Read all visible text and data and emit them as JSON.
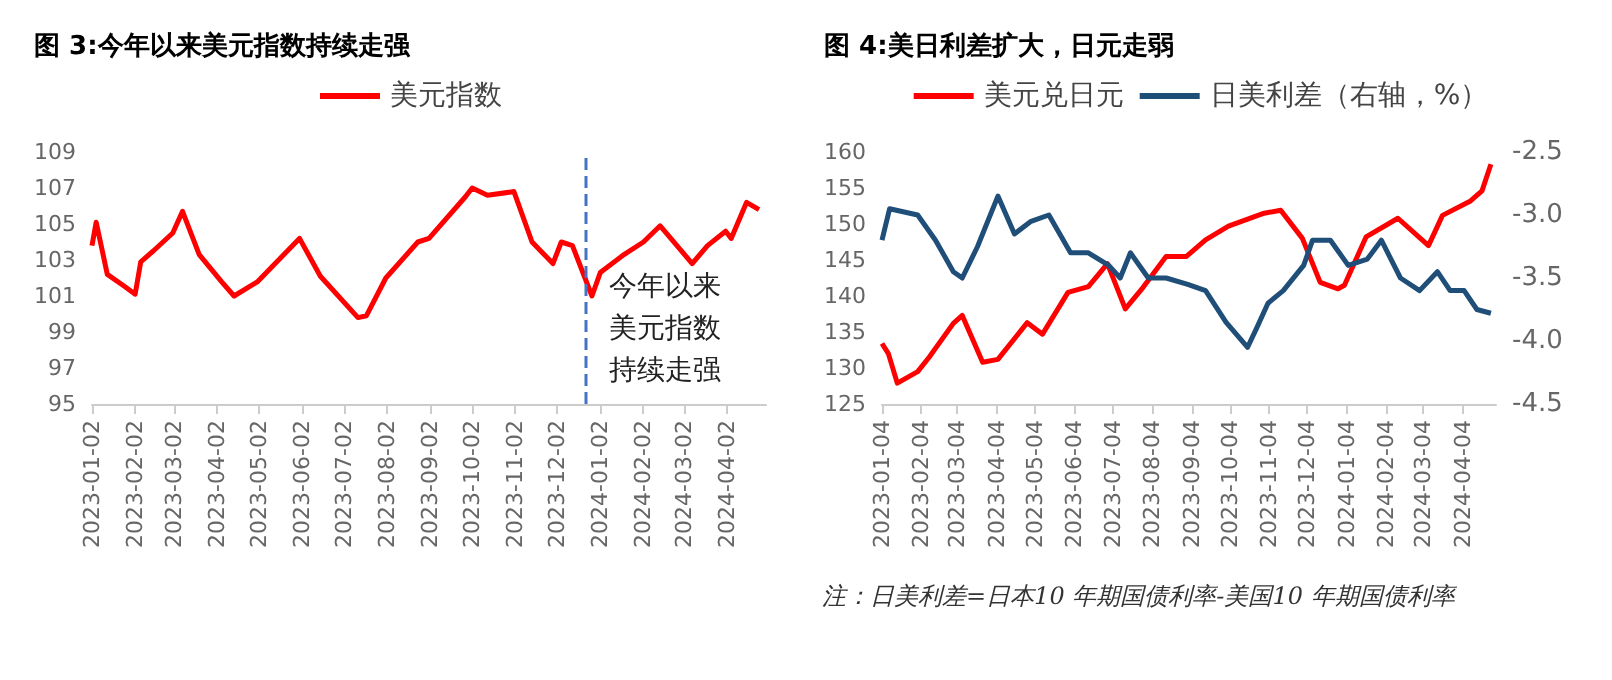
{
  "chart_data": [
    {
      "type": "line",
      "title": "图 3:今年以来美元指数持续走强",
      "x": [
        "2023-01-02",
        "2023-01-05",
        "2023-01-13",
        "2023-01-26",
        "2023-02-02",
        "2023-02-06",
        "2023-02-15",
        "2023-03-01",
        "2023-03-08",
        "2023-03-20",
        "2023-04-05",
        "2023-04-14",
        "2023-05-01",
        "2023-05-31",
        "2023-06-15",
        "2023-07-12",
        "2023-07-18",
        "2023-08-01",
        "2023-08-24",
        "2023-09-01",
        "2023-09-27",
        "2023-10-02",
        "2023-10-13",
        "2023-11-01",
        "2023-11-14",
        "2023-11-29",
        "2023-12-05",
        "2023-12-13",
        "2023-12-27",
        "2024-01-02",
        "2024-01-19",
        "2024-02-02",
        "2024-02-14",
        "2024-03-08",
        "2024-03-19",
        "2024-04-01",
        "2024-04-05",
        "2024-04-16",
        "2024-04-25"
      ],
      "series": [
        {
          "name": "美元指数",
          "color": "#ff0000",
          "values": [
            103.8,
            105.1,
            102.2,
            101.5,
            101.1,
            102.9,
            103.5,
            104.5,
            105.7,
            103.3,
            101.8,
            101.0,
            101.8,
            104.2,
            102.1,
            99.8,
            99.9,
            102.0,
            104.0,
            104.2,
            106.5,
            107.0,
            106.6,
            106.8,
            104.0,
            102.8,
            104.0,
            103.8,
            101.0,
            102.3,
            103.3,
            104.0,
            104.9,
            102.8,
            103.8,
            104.6,
            104.2,
            106.2,
            105.8
          ]
        }
      ],
      "xlim": [
        "2023-01-02",
        "2024-04-30"
      ],
      "xticks": [
        "2023-01-02",
        "2023-02-02",
        "2023-03-02",
        "2023-04-02",
        "2023-05-02",
        "2023-06-02",
        "2023-07-02",
        "2023-08-02",
        "2023-09-02",
        "2023-10-02",
        "2023-11-02",
        "2023-12-02",
        "2024-01-02",
        "2024-02-02",
        "2024-03-02",
        "2024-04-02"
      ],
      "ylim": [
        95,
        109
      ],
      "yticks": [
        95,
        97,
        99,
        101,
        103,
        105,
        107,
        109
      ],
      "ref_lines": [
        {
          "axis": "x",
          "value": "2023-12-22",
          "label": "今年以来美元指数持续走强",
          "color": "#4472c4",
          "line_style": "dashed"
        }
      ],
      "grid": false,
      "legend": "top",
      "marker": "none",
      "line_style": "solid"
    },
    {
      "type": "line",
      "title": "图 4:美日利差扩大，日元走弱",
      "series": [
        {
          "name": "美元兑日元",
          "color": "#ff0000",
          "x": [
            "2023-01-04",
            "2023-01-09",
            "2023-01-16",
            "2023-02-01",
            "2023-02-10",
            "2023-03-01",
            "2023-03-08",
            "2023-03-24",
            "2023-04-05",
            "2023-04-28",
            "2023-05-10",
            "2023-05-30",
            "2023-06-15",
            "2023-06-30",
            "2023-07-14",
            "2023-07-28",
            "2023-08-15",
            "2023-08-31",
            "2023-09-15",
            "2023-10-03",
            "2023-10-31",
            "2023-11-13",
            "2023-11-30",
            "2023-12-14",
            "2023-12-28",
            "2024-01-02",
            "2024-01-19",
            "2024-02-13",
            "2024-03-08",
            "2024-03-19",
            "2024-04-10",
            "2024-04-19",
            "2024-04-26"
          ],
          "values": [
            133.4,
            132.0,
            127.9,
            129.5,
            131.5,
            136.2,
            137.3,
            130.8,
            131.2,
            136.3,
            134.7,
            140.5,
            141.3,
            144.5,
            138.2,
            141.2,
            145.5,
            145.5,
            147.8,
            149.7,
            151.5,
            151.9,
            148.0,
            141.9,
            141.0,
            141.5,
            148.2,
            150.8,
            147.0,
            151.2,
            153.2,
            154.6,
            158.3
          ]
        },
        {
          "name": "日美利差（右轴，%）",
          "color": "#1f4e79",
          "axis": "y2",
          "x": [
            "2023-01-04",
            "2023-01-10",
            "2023-02-01",
            "2023-02-15",
            "2023-03-01",
            "2023-03-08",
            "2023-03-20",
            "2023-04-05",
            "2023-04-18",
            "2023-05-01",
            "2023-05-15",
            "2023-06-01",
            "2023-06-15",
            "2023-07-01",
            "2023-07-10",
            "2023-07-18",
            "2023-08-01",
            "2023-08-15",
            "2023-09-01",
            "2023-09-15",
            "2023-10-01",
            "2023-10-18",
            "2023-10-25",
            "2023-11-03",
            "2023-11-15",
            "2023-12-01",
            "2023-12-08",
            "2023-12-22",
            "2024-01-05",
            "2024-01-20",
            "2024-01-31",
            "2024-02-15",
            "2024-03-01",
            "2024-03-15",
            "2024-03-25",
            "2024-04-05",
            "2024-04-15",
            "2024-04-26"
          ],
          "values": [
            -3.2,
            -2.95,
            -3.0,
            -3.2,
            -3.45,
            -3.5,
            -3.25,
            -2.85,
            -3.15,
            -3.05,
            -3.0,
            -3.3,
            -3.3,
            -3.4,
            -3.5,
            -3.3,
            -3.5,
            -3.5,
            -3.55,
            -3.6,
            -3.85,
            -4.05,
            -3.9,
            -3.7,
            -3.6,
            -3.4,
            -3.2,
            -3.2,
            -3.4,
            -3.35,
            -3.2,
            -3.5,
            -3.6,
            -3.45,
            -3.6,
            -3.6,
            -3.75,
            -3.78
          ]
        }
      ],
      "xlim": [
        "2023-01-04",
        "2024-04-30"
      ],
      "xticks": [
        "2023-01-04",
        "2023-02-04",
        "2023-03-04",
        "2023-04-04",
        "2023-05-04",
        "2023-06-04",
        "2023-07-04",
        "2023-08-04",
        "2023-09-04",
        "2023-10-04",
        "2023-11-04",
        "2023-12-04",
        "2024-01-04",
        "2024-02-04",
        "2024-03-04",
        "2024-04-04"
      ],
      "ylim": [
        125,
        160
      ],
      "yticks": [
        125,
        130,
        135,
        140,
        145,
        150,
        155,
        160
      ],
      "y2lim": [
        -4.5,
        -2.5
      ],
      "y2ticks": [
        {
          "value": -4.5,
          "label": "-4.5"
        },
        {
          "value": -4,
          "label": "-4.0"
        },
        {
          "value": -3.5,
          "label": "-3.5"
        },
        {
          "value": -3,
          "label": "-3.0"
        },
        {
          "value": -2.5,
          "label": "-2.5"
        }
      ],
      "annotations": [
        "注：日美利差=日本10 年期国债利率-美国10 年期国债利率"
      ],
      "grid": false,
      "legend": "top",
      "marker": "none",
      "line_style": "solid"
    }
  ]
}
